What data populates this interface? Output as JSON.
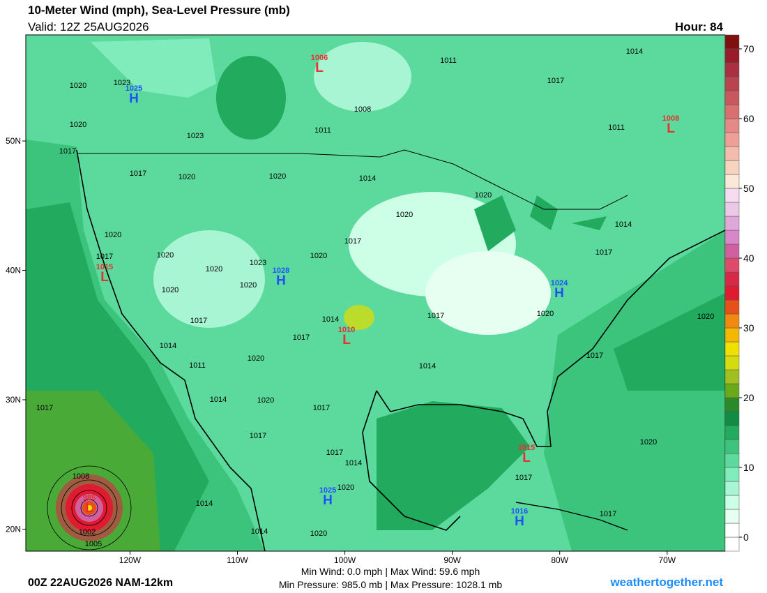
{
  "header": {
    "title": "10-Meter Wind (mph), Sea-Level Pressure (mb)",
    "valid": "Valid: 12Z 25AUG2026",
    "hour": "Hour: 84"
  },
  "map": {
    "xlim": [
      -129.7,
      -64.6
    ],
    "ylim": [
      18.3,
      58.2
    ],
    "xticks": [
      {
        "value": -120,
        "label": "120W"
      },
      {
        "value": -110,
        "label": "110W"
      },
      {
        "value": -100,
        "label": "100W"
      },
      {
        "value": -90,
        "label": "90W"
      },
      {
        "value": -80,
        "label": "80W"
      },
      {
        "value": -70,
        "label": "70W"
      }
    ],
    "yticks": [
      {
        "value": 20,
        "label": "20N"
      },
      {
        "value": 30,
        "label": "30N"
      },
      {
        "value": 40,
        "label": "40N"
      },
      {
        "value": 50,
        "label": "50N"
      }
    ],
    "centers": [
      {
        "value": "1025",
        "letter": "H"
      },
      {
        "value": "1006",
        "letter": "L"
      },
      {
        "value": "1008",
        "letter": "L"
      },
      {
        "value": "1015",
        "letter": "L"
      },
      {
        "value": "1028",
        "letter": "H"
      },
      {
        "value": "1024",
        "letter": "H"
      },
      {
        "value": "1010",
        "letter": "L"
      },
      {
        "value": "1015",
        "letter": "L"
      },
      {
        "value": "1025",
        "letter": "H"
      },
      {
        "value": "1016",
        "letter": "H"
      },
      {
        "value": "985",
        "letter": "L"
      }
    ],
    "isobar_labels": [
      "1020",
      "1023",
      "1020",
      "1017",
      "1023",
      "1017",
      "1020",
      "1020",
      "1011",
      "1008",
      "1011",
      "1014",
      "1017",
      "1011",
      "1014",
      "1020",
      "1020",
      "1017",
      "1014",
      "1017",
      "1020",
      "1017",
      "1020",
      "1020",
      "1023",
      "1020",
      "1020",
      "1020",
      "1017",
      "1014",
      "1011",
      "1014",
      "1017",
      "1020",
      "1017",
      "1020",
      "1014",
      "1020",
      "1017",
      "1014",
      "1020",
      "1017",
      "1017",
      "1017",
      "1014",
      "1020",
      "1017",
      "1020",
      "1017",
      "1017",
      "1014",
      "1014",
      "1020",
      "1008",
      "1002",
      "1005"
    ]
  },
  "colorbar": {
    "lim": [
      -2,
      72
    ],
    "ticks": [
      0,
      10,
      20,
      30,
      40,
      50,
      60,
      70
    ],
    "colors": [
      "#ffffff",
      "#ffffff",
      "#e6fff0",
      "#ccffe6",
      "#a8f5d4",
      "#80ebbb",
      "#5cd99c",
      "#3cc47d",
      "#22aa5e",
      "#118c44",
      "#2a8a2a",
      "#6aaa1a",
      "#a0c020",
      "#d4dc10",
      "#f0e000",
      "#f5b800",
      "#f08a10",
      "#e8501a",
      "#e01a30",
      "#d82848",
      "#e04a6a",
      "#d060a0",
      "#d888c8",
      "#e0a8d8",
      "#ecc8e8",
      "#f5dcf0",
      "#fbe8d8",
      "#f8d4c0",
      "#f4bcac",
      "#eea098",
      "#e48888",
      "#d87070",
      "#c85860",
      "#b84450",
      "#a83040",
      "#981c2c",
      "#801010"
    ]
  },
  "footer": {
    "run": "00Z 22AUG2026 NAM-12km",
    "wind": "Min Wind:  0.0 mph | Max Wind: 59.6 mph",
    "pressure": "Min Pressure: 985.0 mb | Max Pressure: 1028.1 mb",
    "site": "weathertogether.net"
  }
}
